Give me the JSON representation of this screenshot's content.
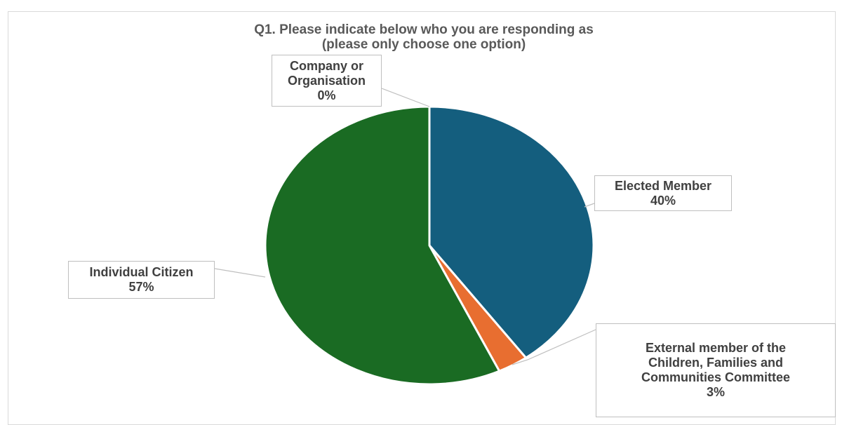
{
  "chart_data": {
    "type": "pie",
    "title_lines": [
      "Q1. Please indicate below who you are responding as",
      "(please only choose one option)"
    ],
    "slices": [
      {
        "key": "elected",
        "label_lines": [
          "Elected Member"
        ],
        "value": 40,
        "value_label": "40%",
        "color": "#145e7e"
      },
      {
        "key": "external",
        "label_lines": [
          "External member of the",
          "Children, Families and",
          "Communities Committee"
        ],
        "value": 3,
        "value_label": "3%",
        "color": "#e86e30"
      },
      {
        "key": "citizen",
        "label_lines": [
          "Individual Citizen"
        ],
        "value": 57,
        "value_label": "57%",
        "color": "#1a6b23"
      },
      {
        "key": "company",
        "label_lines": [
          "Company or",
          "Organisation"
        ],
        "value": 0,
        "value_label": "0%",
        "color": "#7f7f7f"
      }
    ],
    "legend": "none",
    "data_labels": "outside-with-leader-lines"
  }
}
